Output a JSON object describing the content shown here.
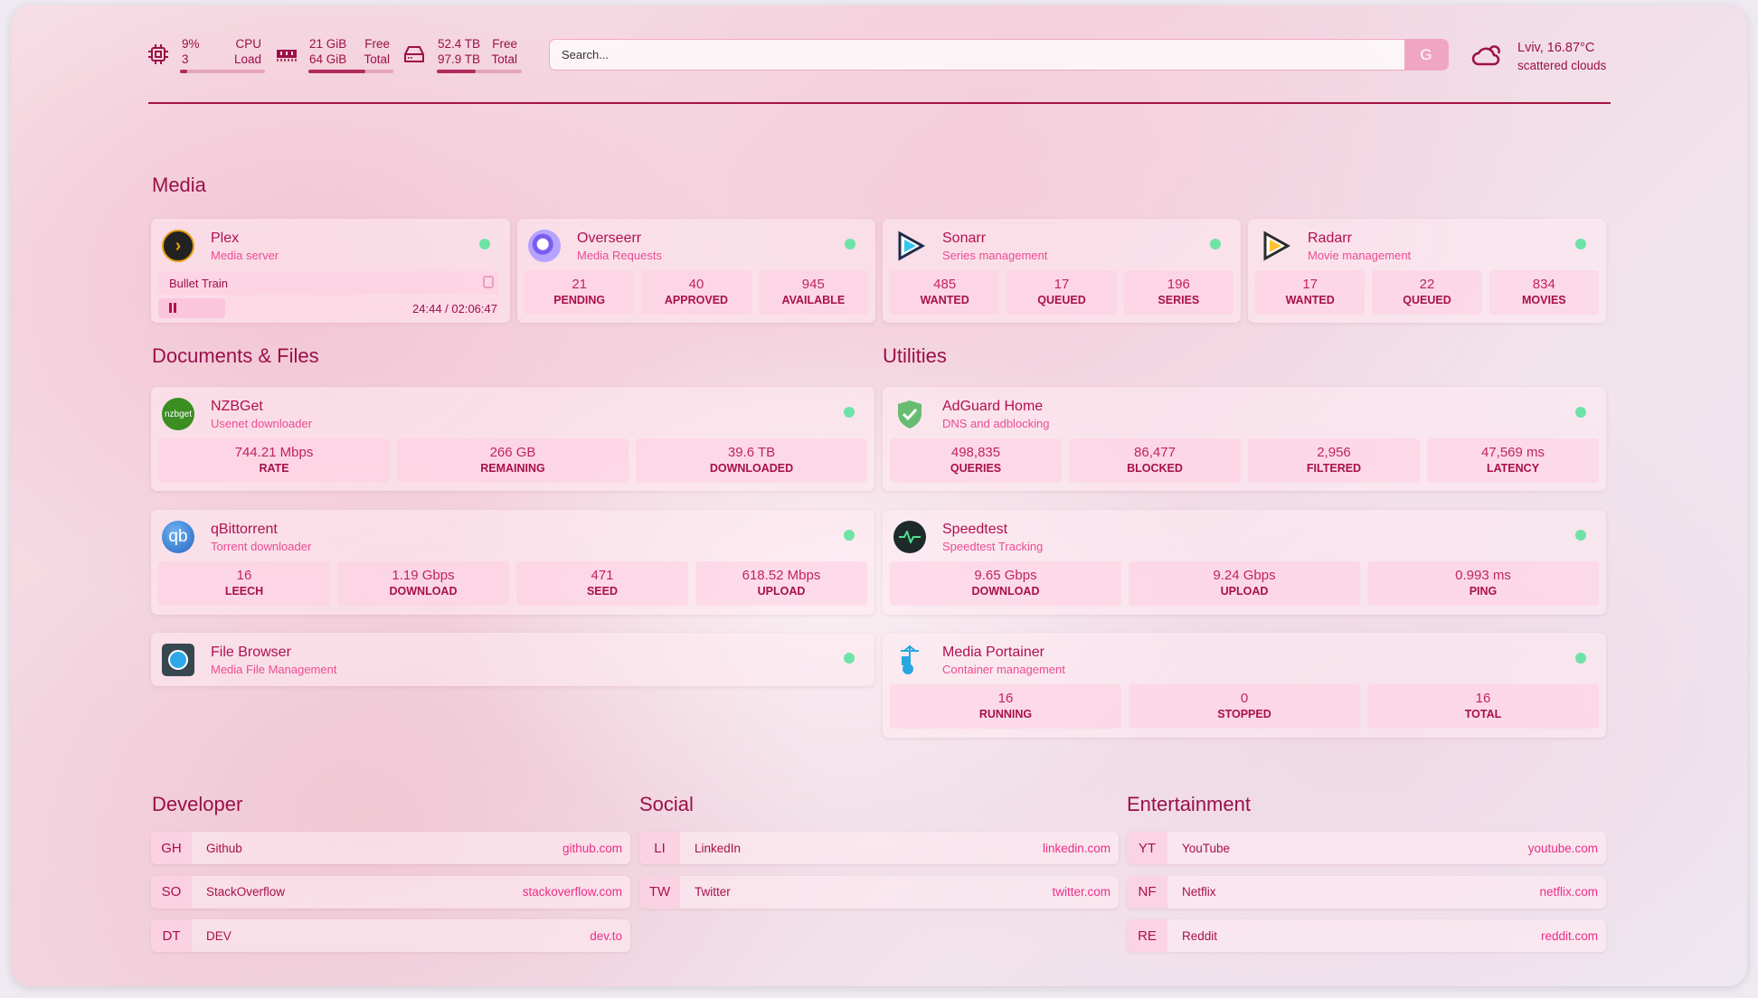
{
  "resources": {
    "cpu": {
      "icon": "cpu-icon",
      "value": "9%",
      "sub": "3",
      "label1": "CPU",
      "label2": "Load",
      "fill_percent": 9
    },
    "memory": {
      "icon": "memory-icon",
      "value": "21 GiB",
      "sub": "64 GiB",
      "label1": "Free",
      "label2": "Total",
      "fill_percent": 67
    },
    "disk": {
      "icon": "disk-icon",
      "value": "52.4 TB",
      "sub": "97.9 TB",
      "label1": "Free",
      "label2": "Total",
      "fill_percent": 46
    }
  },
  "search": {
    "placeholder": "Search...",
    "button": "G"
  },
  "weather": {
    "icon": "cloud-sun-icon",
    "location_temp": "Lviv, 16.87°C",
    "condition": "scattered clouds"
  },
  "colors": {
    "accent": "#9b1048",
    "subtitle": "#ec4c92",
    "status_ok": "#6ee3a6",
    "stat_bg": "#fbd0e2"
  },
  "groups": {
    "media": "Media",
    "documents": "Documents & Files",
    "utilities": "Utilities",
    "developer": "Developer",
    "social": "Social",
    "entertainment": "Entertainment"
  },
  "services": {
    "plex": {
      "name": "Plex",
      "desc": "Media server",
      "icon": "plex-icon",
      "now_playing": {
        "title": "Bullet Train",
        "time": "24:44 / 02:06:47",
        "progress_percent": 19.5
      }
    },
    "overseerr": {
      "name": "Overseerr",
      "desc": "Media Requests",
      "icon": "overseerr-icon",
      "stats": [
        {
          "v": "21",
          "l": "PENDING"
        },
        {
          "v": "40",
          "l": "APPROVED"
        },
        {
          "v": "945",
          "l": "AVAILABLE"
        }
      ]
    },
    "sonarr": {
      "name": "Sonarr",
      "desc": "Series management",
      "icon": "sonarr-icon",
      "stats": [
        {
          "v": "485",
          "l": "WANTED"
        },
        {
          "v": "17",
          "l": "QUEUED"
        },
        {
          "v": "196",
          "l": "SERIES"
        }
      ]
    },
    "radarr": {
      "name": "Radarr",
      "desc": "Movie management",
      "icon": "radarr-icon",
      "stats": [
        {
          "v": "17",
          "l": "WANTED"
        },
        {
          "v": "22",
          "l": "QUEUED"
        },
        {
          "v": "834",
          "l": "MOVIES"
        }
      ]
    },
    "nzbget": {
      "name": "NZBGet",
      "desc": "Usenet downloader",
      "icon": "nzbget-icon",
      "logo_text": "nzbget",
      "stats": [
        {
          "v": "744.21 Mbps",
          "l": "RATE"
        },
        {
          "v": "266 GB",
          "l": "REMAINING"
        },
        {
          "v": "39.6 TB",
          "l": "DOWNLOADED"
        }
      ]
    },
    "qbittorrent": {
      "name": "qBittorrent",
      "desc": "Torrent downloader",
      "icon": "qbittorrent-icon",
      "logo_text": "qb",
      "stats": [
        {
          "v": "16",
          "l": "LEECH"
        },
        {
          "v": "1.19 Gbps",
          "l": "DOWNLOAD"
        },
        {
          "v": "471",
          "l": "SEED"
        },
        {
          "v": "618.52 Mbps",
          "l": "UPLOAD"
        }
      ]
    },
    "filebrowser": {
      "name": "File Browser",
      "desc": "Media File Management",
      "icon": "file-browser-icon"
    },
    "adguard": {
      "name": "AdGuard Home",
      "desc": "DNS and adblocking",
      "icon": "adguard-shield-icon",
      "stats": [
        {
          "v": "498,835",
          "l": "QUERIES"
        },
        {
          "v": "86,477",
          "l": "BLOCKED"
        },
        {
          "v": "2,956",
          "l": "FILTERED"
        },
        {
          "v": "47,569 ms",
          "l": "LATENCY"
        }
      ]
    },
    "speedtest": {
      "name": "Speedtest",
      "desc": "Speedtest Tracking",
      "icon": "speedtest-icon",
      "stats": [
        {
          "v": "9.65 Gbps",
          "l": "DOWNLOAD"
        },
        {
          "v": "9.24 Gbps",
          "l": "UPLOAD"
        },
        {
          "v": "0.993 ms",
          "l": "PING"
        }
      ]
    },
    "portainer": {
      "name": "Media Portainer",
      "desc": "Container management",
      "icon": "portainer-icon",
      "stats": [
        {
          "v": "16",
          "l": "RUNNING"
        },
        {
          "v": "0",
          "l": "STOPPED"
        },
        {
          "v": "16",
          "l": "TOTAL"
        }
      ]
    }
  },
  "bookmarks": {
    "developer": [
      {
        "abbr": "GH",
        "name": "Github",
        "url": "github.com"
      },
      {
        "abbr": "SO",
        "name": "StackOverflow",
        "url": "stackoverflow.com"
      },
      {
        "abbr": "DT",
        "name": "DEV",
        "url": "dev.to"
      }
    ],
    "social": [
      {
        "abbr": "LI",
        "name": "LinkedIn",
        "url": "linkedin.com"
      },
      {
        "abbr": "TW",
        "name": "Twitter",
        "url": "twitter.com"
      }
    ],
    "entertainment": [
      {
        "abbr": "YT",
        "name": "YouTube",
        "url": "youtube.com"
      },
      {
        "abbr": "NF",
        "name": "Netflix",
        "url": "netflix.com"
      },
      {
        "abbr": "RE",
        "name": "Reddit",
        "url": "reddit.com"
      }
    ]
  }
}
